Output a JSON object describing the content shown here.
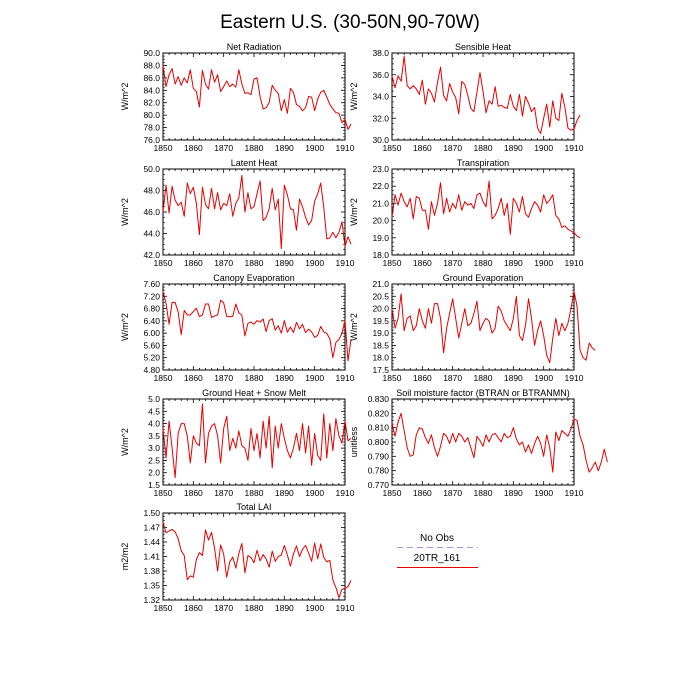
{
  "figure": {
    "title": "Eastern U.S. (30-50N,90-70W)"
  },
  "legend": {
    "entries": [
      {
        "label": "No Obs",
        "color": "#9a9ae6",
        "style": "dashed"
      },
      {
        "label": "20TR_161",
        "color": "#e60000",
        "style": "solid"
      }
    ]
  },
  "chart_data": [
    {
      "type": "line",
      "title": "Net Radiation",
      "ylabel": "W/m^2",
      "xlim": [
        1850,
        1910
      ],
      "ylim": [
        76,
        90
      ],
      "xticks": [
        1850,
        1860,
        1870,
        1880,
        1890,
        1900,
        1910
      ],
      "yticks": [
        76.0,
        78.0,
        80.0,
        82.0,
        84.0,
        86.0,
        88.0,
        90.0
      ],
      "ydec": 1,
      "x_start": 1850,
      "series": [
        {
          "color": "#e60000",
          "values": [
            88.0,
            84.6,
            86.5,
            87.5,
            85.0,
            86.2,
            84.8,
            86.0,
            85.2,
            87.3,
            84.3,
            83.8,
            81.3,
            87.2,
            85.0,
            84.2,
            87.3,
            85.3,
            86.5,
            83.8,
            84.6,
            85.5,
            84.6,
            85.0,
            84.5,
            87.3,
            85.0,
            83.5,
            83.6,
            83.3,
            85.8,
            86.0,
            83.0,
            81.0,
            81.2,
            82.0,
            84.8,
            84.0,
            83.5,
            80.7,
            82.5,
            80.3,
            84.3,
            83.7,
            81.7,
            81.4,
            80.7,
            81.2,
            83.0,
            82.9,
            80.7,
            82.6,
            83.7,
            84.0,
            82.9,
            81.7,
            81.0,
            80.4,
            80.3,
            78.8,
            79.3,
            77.7,
            78.6
          ]
        }
      ]
    },
    {
      "type": "line",
      "title": "Sensible Heat",
      "ylabel": "W/m^2",
      "xlim": [
        1850,
        1910
      ],
      "ylim": [
        30,
        38
      ],
      "xticks": [
        1850,
        1860,
        1870,
        1880,
        1890,
        1900,
        1910
      ],
      "yticks": [
        30.0,
        32.0,
        34.0,
        36.0,
        38.0
      ],
      "ydec": 1,
      "x_start": 1850,
      "series": [
        {
          "color": "#e60000",
          "values": [
            35.9,
            34.8,
            35.9,
            35.4,
            37.7,
            35.0,
            34.7,
            35.0,
            34.7,
            34.2,
            35.5,
            33.3,
            34.7,
            34.3,
            33.5,
            35.3,
            36.7,
            34.1,
            33.6,
            35.2,
            34.4,
            33.9,
            32.4,
            35.4,
            35.1,
            34.1,
            32.9,
            32.6,
            34.4,
            36.2,
            34.5,
            32.5,
            33.6,
            33.3,
            34.9,
            33.1,
            33.2,
            33.0,
            32.9,
            34.2,
            33.1,
            32.7,
            34.2,
            32.2,
            34.0,
            33.4,
            32.6,
            33.0,
            31.1,
            30.6,
            32.0,
            33.3,
            31.2,
            33.6,
            32.0,
            31.8,
            34.3,
            33.0,
            31.1,
            30.9,
            31.0,
            31.8,
            32.3
          ]
        }
      ]
    },
    {
      "type": "line",
      "title": "Latent Heat",
      "ylabel": "W/m^2",
      "xlim": [
        1850,
        1910
      ],
      "ylim": [
        42,
        50
      ],
      "xticks": [
        1850,
        1860,
        1870,
        1880,
        1890,
        1900,
        1910
      ],
      "yticks": [
        42.0,
        44.0,
        46.0,
        48.0,
        50.0
      ],
      "ydec": 1,
      "x_start": 1850,
      "series": [
        {
          "color": "#e60000",
          "values": [
            46.0,
            48.5,
            45.9,
            48.4,
            47.1,
            46.6,
            46.9,
            45.6,
            48.7,
            47.7,
            48.3,
            46.8,
            43.9,
            48.3,
            46.7,
            46.3,
            48.2,
            46.3,
            47.8,
            46.2,
            46.8,
            46.6,
            47.7,
            45.6,
            46.8,
            47.3,
            49.4,
            46.0,
            47.8,
            46.3,
            46.5,
            47.7,
            48.9,
            45.2,
            45.5,
            46.3,
            48.2,
            46.2,
            47.2,
            42.6,
            48.5,
            47.6,
            46.3,
            46.2,
            44.3,
            47.2,
            46.5,
            45.5,
            44.8,
            45.2,
            47.0,
            47.7,
            48.7,
            46.4,
            43.5,
            43.6,
            44.1,
            43.6,
            44.1,
            45.1,
            42.8,
            43.7,
            43.0
          ]
        }
      ]
    },
    {
      "type": "line",
      "title": "Transpiration",
      "ylabel": "W/m^2",
      "xlim": [
        1850,
        1910
      ],
      "ylim": [
        18,
        23
      ],
      "xticks": [
        1850,
        1860,
        1870,
        1880,
        1890,
        1900,
        1910
      ],
      "yticks": [
        18.0,
        19.0,
        20.0,
        21.0,
        22.0,
        23.0
      ],
      "ydec": 1,
      "x_start": 1850,
      "series": [
        {
          "color": "#e60000",
          "values": [
            20.2,
            21.5,
            20.9,
            21.6,
            21.1,
            20.8,
            21.3,
            20.1,
            21.4,
            21.3,
            20.6,
            20.6,
            19.5,
            21.1,
            20.3,
            21.0,
            22.2,
            20.4,
            21.3,
            20.5,
            21.0,
            20.7,
            21.5,
            20.6,
            21.1,
            20.9,
            21.0,
            20.7,
            21.5,
            21.6,
            21.1,
            20.8,
            22.3,
            20.1,
            20.3,
            20.7,
            21.3,
            20.3,
            21.0,
            19.2,
            21.3,
            21.0,
            20.5,
            21.4,
            20.4,
            20.2,
            20.7,
            21.1,
            20.9,
            20.5,
            21.5,
            21.0,
            21.2,
            21.5,
            20.3,
            20.1,
            19.6,
            19.7,
            19.5,
            19.4,
            19.3,
            19.1,
            19.0
          ]
        }
      ]
    },
    {
      "type": "line",
      "title": "Canopy Evaporation",
      "ylabel": "W/m^2",
      "xlim": [
        1850,
        1910
      ],
      "ylim": [
        4.8,
        7.6
      ],
      "xticks": [
        1850,
        1860,
        1870,
        1880,
        1890,
        1900,
        1910
      ],
      "yticks": [
        4.8,
        5.2,
        5.6,
        6.0,
        6.4,
        6.8,
        7.2,
        7.6
      ],
      "ydec": 2,
      "x_start": 1850,
      "series": [
        {
          "color": "#e60000",
          "values": [
            7.35,
            6.97,
            6.29,
            7.0,
            7.0,
            6.69,
            5.95,
            6.74,
            6.59,
            6.59,
            6.7,
            6.81,
            6.54,
            6.59,
            6.95,
            6.95,
            6.51,
            6.56,
            6.59,
            7.07,
            6.99,
            6.55,
            6.53,
            6.55,
            6.95,
            6.66,
            6.59,
            5.91,
            6.32,
            6.36,
            6.29,
            6.41,
            6.36,
            6.46,
            6.05,
            6.41,
            6.47,
            6.1,
            6.24,
            6.0,
            6.41,
            6.03,
            6.2,
            6.02,
            6.35,
            6.14,
            6.29,
            6.02,
            6.13,
            6.04,
            5.86,
            5.93,
            6.22,
            6.04,
            5.99,
            5.82,
            5.2,
            5.7,
            5.79,
            6.0,
            6.4,
            5.1,
            5.81
          ]
        }
      ]
    },
    {
      "type": "line",
      "title": "Ground Evaporation",
      "ylabel": "W/m^2",
      "xlim": [
        1850,
        1910
      ],
      "ylim": [
        17.5,
        21
      ],
      "xticks": [
        1850,
        1860,
        1870,
        1880,
        1890,
        1900,
        1910
      ],
      "yticks": [
        17.5,
        18.0,
        18.5,
        19.0,
        19.5,
        20.0,
        20.5,
        21.0
      ],
      "ydec": 1,
      "x_start": 1850,
      "series": [
        {
          "color": "#e60000",
          "values": [
            20.0,
            19.2,
            19.6,
            20.6,
            19.1,
            19.6,
            19.7,
            19.1,
            19.3,
            20.0,
            19.5,
            19.2,
            20.0,
            19.4,
            20.2,
            20.2,
            19.6,
            18.2,
            19.2,
            19.8,
            20.4,
            19.6,
            18.8,
            19.4,
            20.0,
            19.3,
            19.4,
            19.8,
            20.3,
            19.1,
            19.4,
            19.6,
            19.5,
            19.0,
            19.2,
            20.1,
            19.9,
            19.5,
            19.3,
            19.1,
            19.6,
            20.5,
            18.9,
            18.7,
            19.3,
            20.4,
            19.6,
            18.5,
            19.1,
            19.5,
            18.9,
            18.1,
            17.8,
            18.8,
            19.6,
            18.9,
            19.4,
            19.1,
            19.4,
            20.0,
            20.7,
            20.1,
            18.3,
            18.0,
            17.9,
            18.6,
            18.4,
            18.3
          ]
        }
      ]
    },
    {
      "type": "line",
      "title": "Ground Heat + Snow Melt",
      "ylabel": "W/m^2",
      "xlim": [
        1850,
        1910
      ],
      "ylim": [
        1.5,
        5.0
      ],
      "xticks": [
        1850,
        1860,
        1870,
        1880,
        1890,
        1900,
        1910
      ],
      "yticks": [
        1.5,
        2.0,
        2.5,
        3.0,
        3.5,
        4.0,
        4.5,
        5.0
      ],
      "ydec": 1,
      "x_start": 1850,
      "series": [
        {
          "color": "#e60000",
          "values": [
            3.8,
            2.6,
            4.1,
            3.0,
            1.8,
            3.6,
            4.0,
            4.0,
            3.5,
            2.4,
            3.5,
            3.2,
            3.1,
            4.8,
            2.4,
            3.6,
            3.9,
            4.0,
            3.5,
            2.4,
            3.8,
            4.3,
            2.9,
            3.4,
            3.0,
            3.7,
            3.1,
            3.0,
            2.5,
            3.8,
            2.9,
            3.6,
            2.6,
            4.1,
            3.0,
            4.3,
            2.2,
            3.9,
            3.0,
            4.0,
            3.4,
            2.9,
            2.6,
            3.0,
            3.6,
            2.9,
            4.0,
            2.8,
            3.9,
            2.3,
            3.6,
            2.7,
            2.5,
            4.4,
            2.6,
            4.0,
            2.9,
            4.2,
            3.5,
            3.2,
            4.1,
            3.3,
            3.4
          ]
        }
      ]
    },
    {
      "type": "line",
      "title": "Soil moisture factor (BTRAN or BTRANMN)",
      "ylabel": "unitless",
      "xlim": [
        1850,
        1910
      ],
      "ylim": [
        0.77,
        0.83
      ],
      "xticks": [
        1850,
        1860,
        1870,
        1880,
        1890,
        1900,
        1910
      ],
      "yticks": [
        0.77,
        0.78,
        0.79,
        0.8,
        0.81,
        0.82,
        0.83
      ],
      "ydec": 3,
      "x_start": 1850,
      "series": [
        {
          "color": "#e60000",
          "values": [
            0.813,
            0.804,
            0.814,
            0.82,
            0.808,
            0.796,
            0.79,
            0.791,
            0.805,
            0.81,
            0.809,
            0.803,
            0.799,
            0.805,
            0.796,
            0.79,
            0.797,
            0.806,
            0.804,
            0.799,
            0.806,
            0.8,
            0.806,
            0.804,
            0.8,
            0.803,
            0.796,
            0.789,
            0.804,
            0.801,
            0.797,
            0.805,
            0.8,
            0.805,
            0.806,
            0.803,
            0.8,
            0.806,
            0.803,
            0.804,
            0.81,
            0.802,
            0.798,
            0.8,
            0.793,
            0.798,
            0.792,
            0.799,
            0.804,
            0.799,
            0.79,
            0.805,
            0.796,
            0.779,
            0.807,
            0.801,
            0.808,
            0.806,
            0.804,
            0.809,
            0.816,
            0.815,
            0.804,
            0.798,
            0.787,
            0.779,
            0.782,
            0.786,
            0.78,
            0.786,
            0.795,
            0.786
          ]
        }
      ]
    },
    {
      "type": "line",
      "title": "Total LAI",
      "ylabel": "m2/m2",
      "xlim": [
        1850,
        1910
      ],
      "ylim": [
        1.32,
        1.5
      ],
      "xticks": [
        1850,
        1860,
        1870,
        1880,
        1890,
        1900,
        1910
      ],
      "yticks": [
        1.32,
        1.35,
        1.38,
        1.41,
        1.44,
        1.47,
        1.5
      ],
      "ydec": 2,
      "x_start": 1850,
      "series": [
        {
          "color": "#e60000",
          "values": [
            1.48,
            1.459,
            1.463,
            1.466,
            1.461,
            1.447,
            1.422,
            1.412,
            1.362,
            1.37,
            1.367,
            1.404,
            1.418,
            1.412,
            1.465,
            1.444,
            1.46,
            1.427,
            1.38,
            1.434,
            1.415,
            1.367,
            1.399,
            1.409,
            1.386,
            1.416,
            1.437,
            1.376,
            1.412,
            1.408,
            1.397,
            1.423,
            1.401,
            1.414,
            1.405,
            1.388,
            1.421,
            1.4,
            1.41,
            1.413,
            1.433,
            1.413,
            1.39,
            1.415,
            1.432,
            1.41,
            1.425,
            1.433,
            1.417,
            1.4,
            1.438,
            1.405,
            1.436,
            1.408,
            1.399,
            1.402,
            1.361,
            1.346,
            1.325,
            1.342,
            1.344,
            1.348,
            1.361
          ]
        }
      ]
    }
  ]
}
